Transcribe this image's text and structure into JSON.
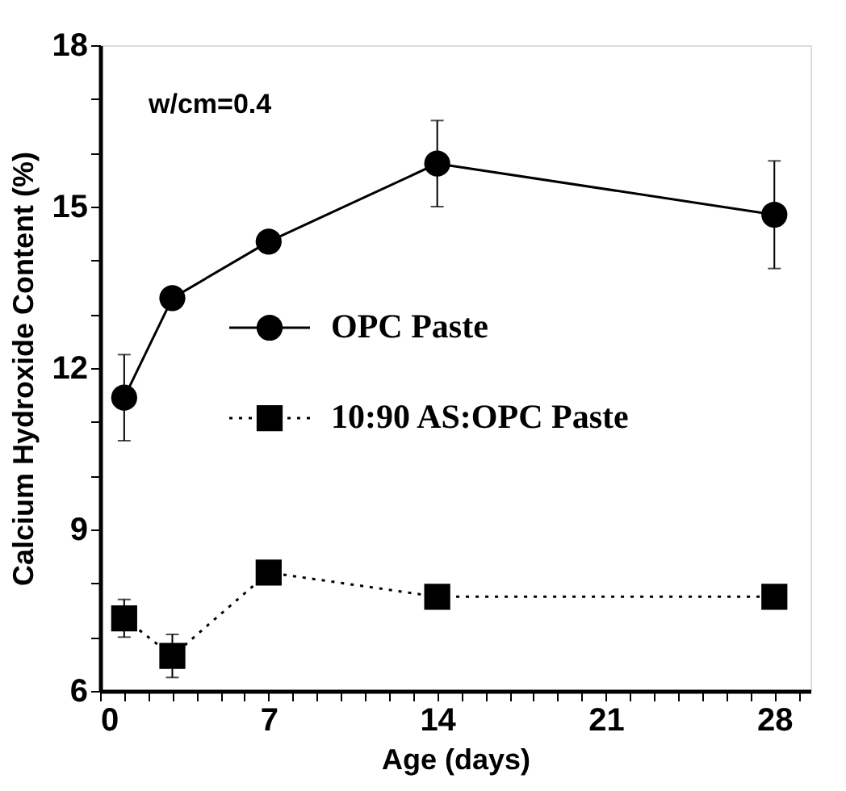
{
  "chart_data": {
    "type": "line",
    "xlabel": "Age (days)",
    "ylabel": "Calcium Hydroxide Content (%)",
    "annotations": [
      "w/cm=0.4"
    ],
    "x": [
      1,
      3,
      7,
      14,
      28
    ],
    "series": [
      {
        "name": "OPC Paste",
        "color": "#000000",
        "marker": "circle",
        "line_style": "solid",
        "values": [
          11.45,
          13.3,
          14.35,
          15.8,
          14.85
        ],
        "errors": [
          0.8,
          null,
          null,
          0.8,
          1.0
        ]
      },
      {
        "name": "10:90 AS:OPC Paste",
        "color": "#000000",
        "marker": "square",
        "line_style": "dotted",
        "values": [
          7.35,
          6.65,
          8.2,
          7.75,
          7.75
        ],
        "errors": [
          0.35,
          0.4,
          null,
          null,
          null
        ]
      }
    ],
    "xlim": [
      0,
      29.5
    ],
    "xticks": [
      0,
      {
        "value": 1,
        "label": null
      },
      {
        "value": 2,
        "label": null
      },
      {
        "value": 3,
        "label": null
      },
      {
        "value": 4,
        "label": null
      },
      {
        "value": 5,
        "label": null
      },
      {
        "value": 6,
        "label": null
      },
      7,
      {
        "value": 8,
        "label": null
      },
      {
        "value": 9,
        "label": null
      },
      {
        "value": 10,
        "label": null
      },
      {
        "value": 11,
        "label": null
      },
      {
        "value": 12,
        "label": null
      },
      {
        "value": 13,
        "label": null
      },
      14,
      {
        "value": 15,
        "label": null
      },
      {
        "value": 16,
        "label": null
      },
      {
        "value": 17,
        "label": null
      },
      {
        "value": 18,
        "label": null
      },
      {
        "value": 19,
        "label": null
      },
      {
        "value": 20,
        "label": null
      },
      21,
      {
        "value": 22,
        "label": null
      },
      {
        "value": 23,
        "label": null
      },
      {
        "value": 24,
        "label": null
      },
      {
        "value": 25,
        "label": null
      },
      {
        "value": 26,
        "label": null
      },
      {
        "value": 27,
        "label": null
      },
      28,
      {
        "value": 29,
        "label": null
      }
    ],
    "ylim": [
      6,
      18
    ],
    "yticks": [
      6,
      {
        "value": 7,
        "label": null
      },
      {
        "value": 8,
        "label": null
      },
      9,
      {
        "value": 10,
        "label": null
      },
      {
        "value": 11,
        "label": null
      },
      12,
      {
        "value": 13,
        "label": null
      },
      {
        "value": 14,
        "label": null
      },
      15,
      {
        "value": 16,
        "label": null
      },
      {
        "value": 17,
        "label": null
      },
      18
    ],
    "grid": false,
    "legend": "left"
  }
}
